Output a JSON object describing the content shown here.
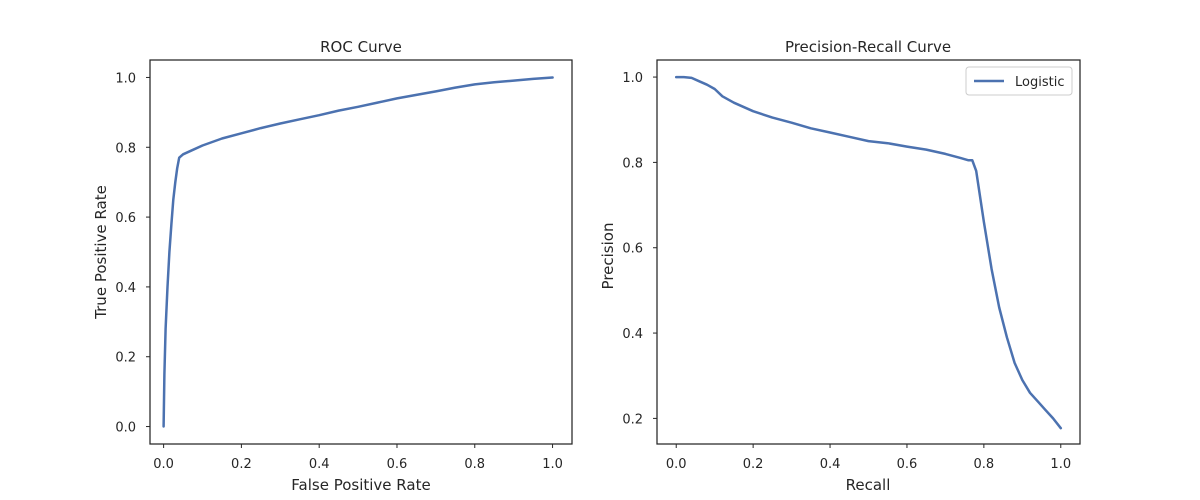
{
  "colors": {
    "line": "#4c72b0",
    "axes": "#262626",
    "background": "#ffffff"
  },
  "chart_data": [
    {
      "type": "line",
      "title": "ROC Curve",
      "xlabel": "False Positive Rate",
      "ylabel": "True Positive Rate",
      "xlim": [
        -0.035,
        1.05
      ],
      "ylim": [
        -0.05,
        1.05
      ],
      "xticks": [
        "0.0",
        "0.2",
        "0.4",
        "0.6",
        "0.8",
        "1.0"
      ],
      "yticks": [
        "0.0",
        "0.2",
        "0.4",
        "0.6",
        "0.8",
        "1.0"
      ],
      "grid": false,
      "series": [
        {
          "color": "#4c72b0",
          "x": [
            0,
            0.002,
            0.005,
            0.01,
            0.015,
            0.02,
            0.025,
            0.03,
            0.035,
            0.04,
            0.05,
            0.07,
            0.1,
            0.15,
            0.2,
            0.25,
            0.3,
            0.35,
            0.4,
            0.45,
            0.5,
            0.55,
            0.6,
            0.65,
            0.7,
            0.75,
            0.8,
            0.85,
            0.9,
            0.95,
            1.0
          ],
          "y": [
            0.0,
            0.15,
            0.28,
            0.4,
            0.5,
            0.58,
            0.65,
            0.7,
            0.74,
            0.77,
            0.78,
            0.79,
            0.805,
            0.825,
            0.84,
            0.855,
            0.868,
            0.88,
            0.892,
            0.905,
            0.916,
            0.928,
            0.94,
            0.95,
            0.96,
            0.971,
            0.98,
            0.986,
            0.991,
            0.996,
            1.0
          ]
        }
      ]
    },
    {
      "type": "line",
      "title": "Precision-Recall Curve",
      "xlabel": "Recall",
      "ylabel": "Precision",
      "xlim": [
        -0.05,
        1.05
      ],
      "ylim": [
        0.14,
        1.04
      ],
      "xticks": [
        "0.0",
        "0.2",
        "0.4",
        "0.6",
        "0.8",
        "1.0"
      ],
      "yticks": [
        "0.2",
        "0.4",
        "0.6",
        "0.8",
        "1.0"
      ],
      "grid": false,
      "legend": "top-right",
      "series": [
        {
          "name": "Logistic",
          "color": "#4c72b0",
          "x": [
            0,
            0.02,
            0.04,
            0.06,
            0.08,
            0.1,
            0.12,
            0.15,
            0.2,
            0.25,
            0.3,
            0.35,
            0.4,
            0.45,
            0.5,
            0.55,
            0.6,
            0.65,
            0.7,
            0.74,
            0.76,
            0.77,
            0.78,
            0.8,
            0.82,
            0.84,
            0.86,
            0.88,
            0.9,
            0.92,
            0.94,
            0.96,
            0.98,
            1.0
          ],
          "y": [
            1.0,
            1.0,
            0.998,
            0.99,
            0.982,
            0.972,
            0.955,
            0.94,
            0.92,
            0.905,
            0.893,
            0.88,
            0.87,
            0.86,
            0.85,
            0.845,
            0.837,
            0.83,
            0.82,
            0.81,
            0.805,
            0.805,
            0.78,
            0.66,
            0.55,
            0.46,
            0.39,
            0.33,
            0.29,
            0.26,
            0.24,
            0.22,
            0.2,
            0.177
          ]
        }
      ]
    }
  ]
}
